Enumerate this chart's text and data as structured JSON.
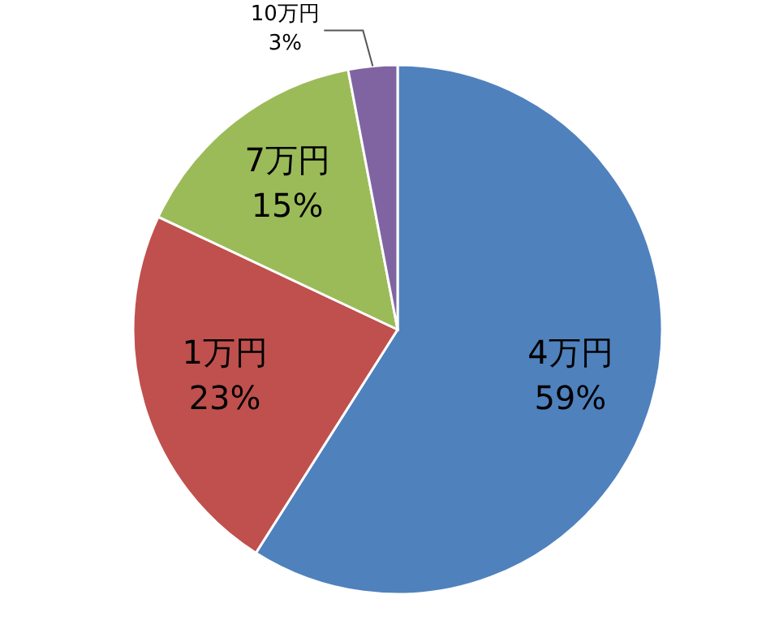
{
  "chart_data": {
    "type": "pie",
    "categories": [
      "4万円",
      "1万円",
      "7万円",
      "10万円"
    ],
    "values": [
      59,
      23,
      15,
      3
    ],
    "colors": [
      "#4f81bd",
      "#c0504d",
      "#9bbb59",
      "#8064a2"
    ],
    "value_labels": [
      "59%",
      "23%",
      "15%",
      "3%"
    ],
    "legend": false
  }
}
